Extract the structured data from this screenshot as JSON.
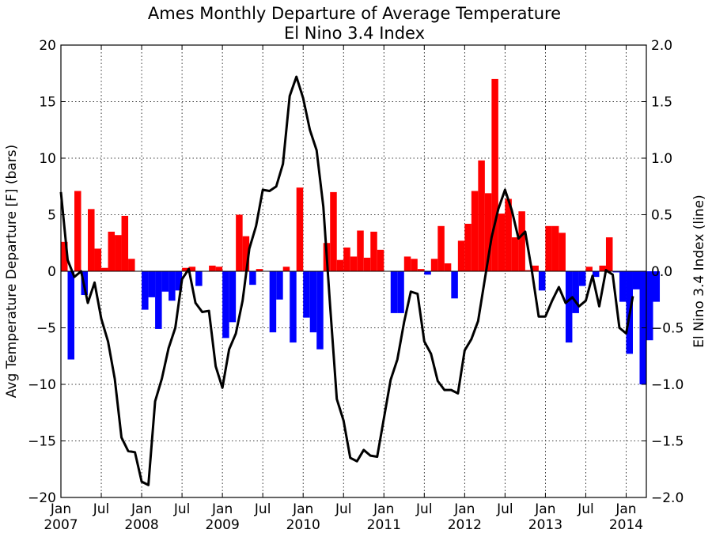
{
  "chart_data": {
    "type": "bar",
    "title": "Ames Monthly Departure of Average Temperature",
    "subtitle": "El Nino 3.4 Index",
    "ylabel": "Avg Temperature Departure [F] (bars)",
    "y2label": "El Nino 3.4 Index (line)",
    "ylim": [
      -20,
      20
    ],
    "y2lim": [
      -2.0,
      2.0
    ],
    "xlim": [
      0,
      87
    ],
    "grid": true,
    "yticks": [
      "20",
      "15",
      "10",
      "5",
      "0",
      "−5",
      "−10",
      "−15",
      "−20"
    ],
    "y2ticks": [
      "2.0",
      "1.5",
      "1.0",
      "0.5",
      "0.0",
      "−0.5",
      "−1.0",
      "−1.5",
      "−2.0"
    ],
    "xticks": [
      {
        "month": "Jan",
        "year": "2007"
      },
      {
        "month": "Jul",
        "year": ""
      },
      {
        "month": "Jan",
        "year": "2008"
      },
      {
        "month": "Jul",
        "year": ""
      },
      {
        "month": "Jan",
        "year": "2009"
      },
      {
        "month": "Jul",
        "year": ""
      },
      {
        "month": "Jan",
        "year": "2010"
      },
      {
        "month": "Jul",
        "year": ""
      },
      {
        "month": "Jan",
        "year": "2011"
      },
      {
        "month": "Jul",
        "year": ""
      },
      {
        "month": "Jan",
        "year": "2012"
      },
      {
        "month": "Jul",
        "year": ""
      },
      {
        "month": "Jan",
        "year": "2013"
      },
      {
        "month": "Jul",
        "year": ""
      },
      {
        "month": "Jan",
        "year": "2014"
      }
    ],
    "colors": {
      "positive": "#ff0000",
      "negative": "#0000ff",
      "line": "#000000"
    },
    "months": [
      "2007-01",
      "2007-02",
      "2007-03",
      "2007-04",
      "2007-05",
      "2007-06",
      "2007-07",
      "2007-08",
      "2007-09",
      "2007-10",
      "2007-11",
      "2007-12",
      "2008-01",
      "2008-02",
      "2008-03",
      "2008-04",
      "2008-05",
      "2008-06",
      "2008-07",
      "2008-08",
      "2008-09",
      "2008-10",
      "2008-11",
      "2008-12",
      "2009-01",
      "2009-02",
      "2009-03",
      "2009-04",
      "2009-05",
      "2009-06",
      "2009-07",
      "2009-08",
      "2009-09",
      "2009-10",
      "2009-11",
      "2009-12",
      "2010-01",
      "2010-02",
      "2010-03",
      "2010-04",
      "2010-05",
      "2010-06",
      "2010-07",
      "2010-08",
      "2010-09",
      "2010-10",
      "2010-11",
      "2010-12",
      "2011-01",
      "2011-02",
      "2011-03",
      "2011-04",
      "2011-05",
      "2011-06",
      "2011-07",
      "2011-08",
      "2011-09",
      "2011-10",
      "2011-11",
      "2011-12",
      "2012-01",
      "2012-02",
      "2012-03",
      "2012-04",
      "2012-05",
      "2012-06",
      "2012-07",
      "2012-08",
      "2012-09",
      "2012-10",
      "2012-11",
      "2012-12",
      "2013-01",
      "2013-02",
      "2013-03",
      "2013-04",
      "2013-05",
      "2013-06",
      "2013-07",
      "2013-08",
      "2013-09",
      "2013-10",
      "2013-11",
      "2013-12",
      "2014-01",
      "2014-02",
      "2014-03",
      "2014-04",
      "2014-05"
    ],
    "series": [
      {
        "name": "Avg Temperature Departure [F]",
        "kind": "bar",
        "axis": "left",
        "values": [
          2.6,
          -7.8,
          7.1,
          -2.1,
          5.5,
          2.0,
          0.3,
          3.5,
          3.2,
          4.9,
          1.1,
          0.0,
          -3.4,
          -2.3,
          -5.1,
          -1.8,
          -2.6,
          -1.7,
          0.3,
          0.4,
          -1.3,
          0.0,
          0.5,
          0.4,
          -5.9,
          -4.5,
          5.0,
          3.1,
          -1.2,
          0.2,
          0.0,
          -5.4,
          -2.5,
          0.4,
          -6.3,
          7.4,
          -4.1,
          -5.4,
          -6.9,
          2.5,
          7.0,
          1.0,
          2.1,
          1.3,
          3.6,
          1.2,
          3.5,
          1.9,
          0.0,
          -3.7,
          -3.7,
          1.3,
          1.1,
          0.2,
          -0.3,
          1.1,
          4.0,
          0.7,
          -2.4,
          2.7,
          4.2,
          7.1,
          9.8,
          6.9,
          17.0,
          5.1,
          6.4,
          3.0,
          5.3,
          0.1,
          0.5,
          -1.7,
          4.0,
          4.0,
          3.4,
          -6.3,
          -3.7,
          -1.3,
          0.4,
          -0.5,
          0.5,
          3.0,
          -0.1,
          -2.7,
          -7.3,
          -1.6,
          -10.0,
          -6.1,
          -2.7
        ]
      },
      {
        "name": "El Nino 3.4 Index",
        "kind": "line",
        "axis": "right",
        "values": [
          0.7,
          0.1,
          -0.05,
          0.0,
          -0.28,
          -0.1,
          -0.42,
          -0.62,
          -0.95,
          -1.47,
          -1.59,
          -1.6,
          -1.86,
          -1.89,
          -1.15,
          -0.95,
          -0.68,
          -0.5,
          -0.07,
          0.02,
          -0.28,
          -0.36,
          -0.35,
          -0.84,
          -1.03,
          -0.69,
          -0.55,
          -0.26,
          0.2,
          0.4,
          0.72,
          0.71,
          0.75,
          0.95,
          1.55,
          1.72,
          1.53,
          1.25,
          1.07,
          0.57,
          -0.3,
          -1.13,
          -1.32,
          -1.65,
          -1.68,
          -1.58,
          -1.63,
          -1.64,
          -1.3,
          -0.96,
          -0.78,
          -0.45,
          -0.18,
          -0.2,
          -0.62,
          -0.73,
          -0.97,
          -1.05,
          -1.05,
          -1.08,
          -0.7,
          -0.6,
          -0.44,
          -0.07,
          0.3,
          0.55,
          0.72,
          0.54,
          0.29,
          0.35,
          0.0,
          -0.4,
          -0.4,
          -0.26,
          -0.14,
          -0.28,
          -0.23,
          -0.31,
          -0.26,
          -0.04,
          -0.31,
          0.01,
          -0.03,
          -0.5,
          -0.55,
          -0.22
        ]
      }
    ]
  }
}
